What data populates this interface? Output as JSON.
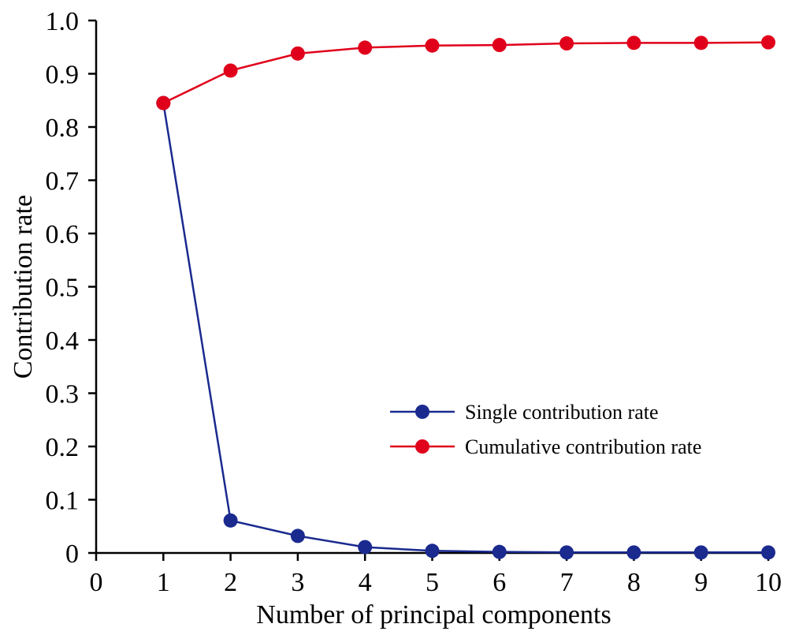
{
  "chart_data": {
    "type": "line",
    "title": "",
    "xlabel": "Number of principal components",
    "ylabel": "Contribution rate",
    "xlim": [
      0,
      10
    ],
    "ylim": [
      0,
      1.0
    ],
    "xticks": [
      "0",
      "1",
      "2",
      "3",
      "4",
      "5",
      "6",
      "7",
      "8",
      "9",
      "10"
    ],
    "yticks": [
      "0",
      "0.1",
      "0.2",
      "0.3",
      "0.4",
      "0.5",
      "0.6",
      "0.7",
      "0.8",
      "0.9",
      "1.0"
    ],
    "grid": false,
    "legend_position": "center-right",
    "x": [
      1,
      2,
      3,
      4,
      5,
      6,
      7,
      8,
      9,
      10
    ],
    "series": [
      {
        "name": "Single contribution rate",
        "color": "#1a2a8f",
        "values": [
          0.845,
          0.061,
          0.032,
          0.011,
          0.004,
          0.002,
          0.001,
          0.001,
          0.001,
          0.001
        ]
      },
      {
        "name": "Cumulative contribution rate",
        "color": "#e0001b",
        "values": [
          0.845,
          0.906,
          0.938,
          0.949,
          0.953,
          0.954,
          0.957,
          0.958,
          0.958,
          0.959
        ]
      }
    ]
  }
}
